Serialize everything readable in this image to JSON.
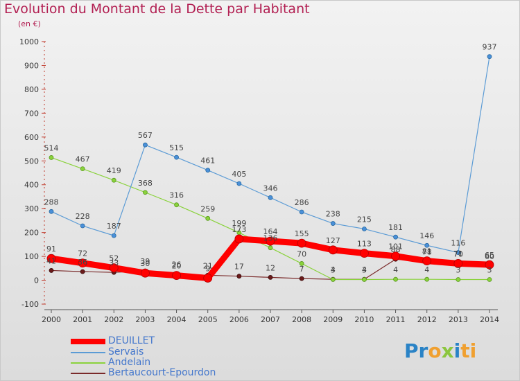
{
  "header": {
    "title": "Evolution du Montant de la Dette par Habitant",
    "subtitle": "(en €)"
  },
  "logo": {
    "text": "Proxiti",
    "parts": [
      "Pr",
      "o",
      "x",
      "i",
      "ti"
    ]
  },
  "colors": {
    "title": "#b21f52",
    "deuillet": "#ff0000",
    "servais": "#5b9bd5",
    "andelain": "#8ad23c",
    "bertaucourt": "#7a2a2a",
    "legend_text": "#4477cc"
  },
  "chart_data": {
    "type": "line",
    "title": "Evolution du Montant de la Dette par Habitant",
    "subtitle": "(en €)",
    "xlabel": "",
    "ylabel": "",
    "x": [
      "2000",
      "2001",
      "2002",
      "2003",
      "2004",
      "2005",
      "2006",
      "2007",
      "2008",
      "2009",
      "2010",
      "2011",
      "2012",
      "2013",
      "2014"
    ],
    "ylim": [
      -100,
      1000
    ],
    "yticks": [
      "-100",
      "0",
      "100",
      "200",
      "300",
      "400",
      "500",
      "600",
      "700",
      "800",
      "900",
      "1000"
    ],
    "grid": false,
    "legend_position": "bottom-left",
    "series": [
      {
        "name": "DEUILLET",
        "color": "#ff0000",
        "values": [
          91,
          72,
          52,
          30,
          20,
          9,
          173,
          164,
          155,
          127,
          113,
          101,
          81,
          70,
          65
        ],
        "labels": [
          "91",
          "72",
          "52",
          "30",
          "20",
          "9",
          "173",
          "164",
          "155",
          "127",
          "113",
          "101",
          "81",
          "70",
          "65"
        ]
      },
      {
        "name": "Servais",
        "color": "#5b9bd5",
        "values": [
          288,
          228,
          187,
          567,
          515,
          461,
          405,
          346,
          286,
          238,
          215,
          181,
          146,
          116,
          937
        ],
        "labels": [
          "288",
          "228",
          "187",
          "567",
          "515",
          "461",
          "405",
          "346",
          "286",
          "238",
          "215",
          "181",
          "146",
          "116",
          "937"
        ]
      },
      {
        "name": "Andelain",
        "color": "#8ad23c",
        "values": [
          514,
          467,
          419,
          368,
          316,
          259,
          199,
          136,
          70,
          3,
          3,
          4,
          4,
          3,
          3
        ],
        "labels": [
          "514",
          "467",
          "419",
          "368",
          "316",
          "259",
          "199",
          "136",
          "70",
          "3",
          "3",
          "4",
          "4",
          "3",
          "3"
        ]
      },
      {
        "name": "Bertaucourt-Epourdon",
        "color": "#7a2a2a",
        "values": [
          41,
          36,
          33,
          39,
          26,
          21,
          17,
          12,
          7,
          4,
          4,
          88,
          78,
          71,
          60
        ],
        "labels": [
          "41",
          "36",
          "33",
          "39",
          "26",
          "21",
          "17",
          "12",
          "7",
          "4",
          "4",
          "88",
          "78",
          "71",
          "60"
        ]
      }
    ]
  }
}
